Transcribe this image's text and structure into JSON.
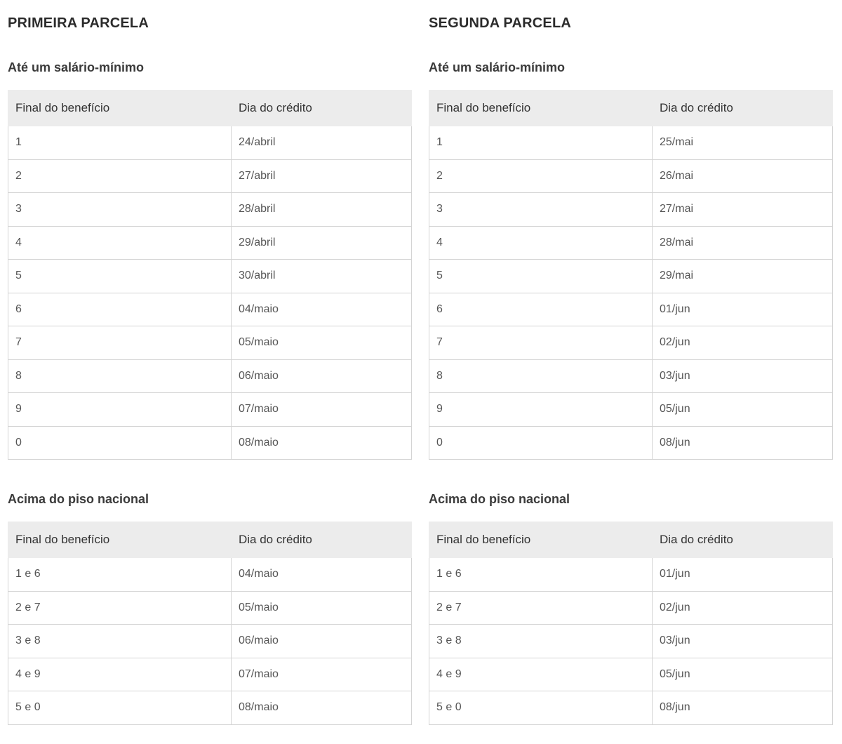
{
  "columns": [
    "Final do benefício",
    "Dia do crédito"
  ],
  "sections": [
    {
      "title": "PRIMEIRA PARCELA",
      "groups": [
        {
          "subtitle": "Até um salário-mínimo",
          "rows": [
            [
              "1",
              "24/abril"
            ],
            [
              "2",
              "27/abril"
            ],
            [
              "3",
              "28/abril"
            ],
            [
              "4",
              "29/abril"
            ],
            [
              "5",
              "30/abril"
            ],
            [
              "6",
              "04/maio"
            ],
            [
              "7",
              "05/maio"
            ],
            [
              "8",
              "06/maio"
            ],
            [
              "9",
              "07/maio"
            ],
            [
              "0",
              "08/maio"
            ]
          ]
        },
        {
          "subtitle": "Acima do piso nacional",
          "rows": [
            [
              "1 e 6",
              "04/maio"
            ],
            [
              "2 e 7",
              "05/maio"
            ],
            [
              "3 e 8",
              "06/maio"
            ],
            [
              "4 e 9",
              "07/maio"
            ],
            [
              "5 e 0",
              "08/maio"
            ]
          ]
        }
      ]
    },
    {
      "title": "SEGUNDA PARCELA",
      "groups": [
        {
          "subtitle": "Até um salário-mínimo",
          "rows": [
            [
              "1",
              "25/mai"
            ],
            [
              "2",
              "26/mai"
            ],
            [
              "3",
              "27/mai"
            ],
            [
              "4",
              "28/mai"
            ],
            [
              "5",
              "29/mai"
            ],
            [
              "6",
              "01/jun"
            ],
            [
              "7",
              "02/jun"
            ],
            [
              "8",
              "03/jun"
            ],
            [
              "9",
              "05/jun"
            ],
            [
              "0",
              "08/jun"
            ]
          ]
        },
        {
          "subtitle": "Acima do piso nacional",
          "rows": [
            [
              "1 e 6",
              "01/jun"
            ],
            [
              "2 e 7",
              "02/jun"
            ],
            [
              "3 e 8",
              "03/jun"
            ],
            [
              "4 e 9",
              "05/jun"
            ],
            [
              "5 e 0",
              "08/jun"
            ]
          ]
        }
      ]
    }
  ]
}
